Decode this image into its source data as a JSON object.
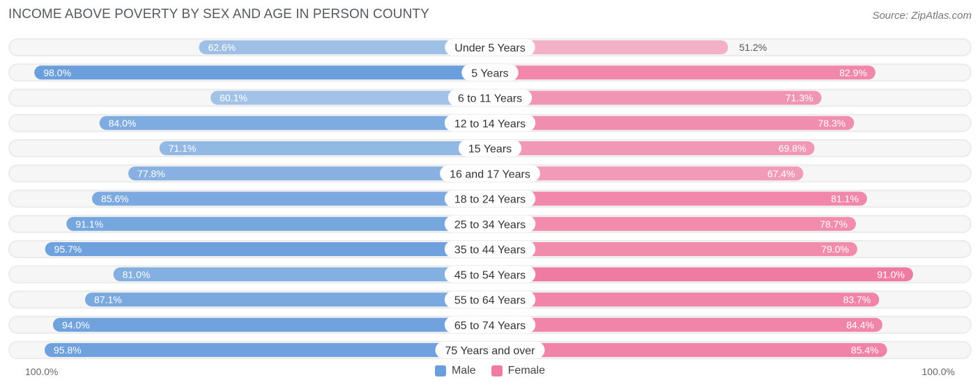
{
  "chart_data": {
    "type": "bar",
    "title": "INCOME ABOVE POVERTY BY SEX AND AGE IN PERSON COUNTY",
    "source": "Source: ZipAtlas.com",
    "categories": [
      "Under 5 Years",
      "5 Years",
      "6 to 11 Years",
      "12 to 14 Years",
      "15 Years",
      "16 and 17 Years",
      "18 to 24 Years",
      "25 to 34 Years",
      "35 to 44 Years",
      "45 to 54 Years",
      "55 to 64 Years",
      "65 to 74 Years",
      "75 Years and over"
    ],
    "series": [
      {
        "name": "Male",
        "color": "#6a9fdc",
        "values": [
          62.6,
          98.0,
          60.1,
          84.0,
          71.1,
          77.8,
          85.6,
          91.1,
          95.7,
          81.0,
          87.1,
          94.0,
          95.8
        ]
      },
      {
        "name": "Female",
        "color": "#f07ba2",
        "values": [
          51.2,
          82.9,
          71.3,
          78.3,
          69.8,
          67.4,
          81.1,
          78.7,
          79.0,
          91.0,
          83.7,
          84.4,
          85.4
        ]
      }
    ],
    "value_labels": {
      "Male": [
        "62.6%",
        "98.0%",
        "60.1%",
        "84.0%",
        "71.1%",
        "77.8%",
        "85.6%",
        "91.1%",
        "95.7%",
        "81.0%",
        "87.1%",
        "94.0%",
        "95.8%"
      ],
      "Female": [
        "51.2%",
        "82.9%",
        "71.3%",
        "78.3%",
        "69.8%",
        "67.4%",
        "81.1%",
        "78.7%",
        "79.0%",
        "91.0%",
        "83.7%",
        "84.4%",
        "85.4%"
      ]
    },
    "xlim": [
      0,
      100
    ],
    "axis_left_label": "100.0%",
    "axis_right_label": "100.0%",
    "legend": [
      {
        "label": "Male",
        "color": "#6a9fdc"
      },
      {
        "label": "Female",
        "color": "#f07ba2"
      }
    ]
  }
}
